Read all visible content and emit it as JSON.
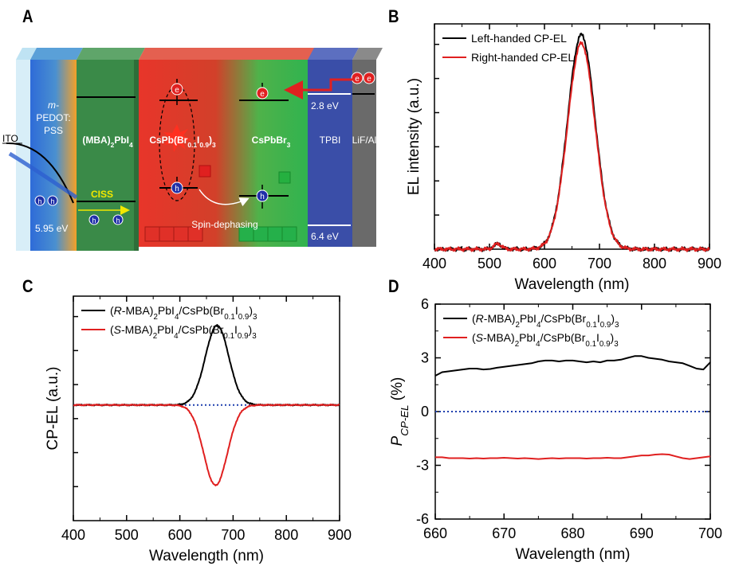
{
  "panels": {
    "a": "A",
    "b": "B",
    "c": "C",
    "d": "D"
  },
  "device": {
    "layers": [
      {
        "lines": [
          "m-",
          "PEDOT:",
          "PSS"
        ],
        "color": "#f0a030"
      },
      {
        "lines": [
          "(MBA)2PbI4"
        ],
        "color": "#3f8f4a"
      },
      {
        "lines": [
          "CsPb(Br0.1I0.9)3"
        ],
        "color": "#e03a2c"
      },
      {
        "lines": [
          "CsPbBr3"
        ],
        "color": "#37b34a"
      },
      {
        "lines": [
          "TPBI"
        ],
        "color": "#3d4fa8"
      },
      {
        "lines": [
          "LiF/Al"
        ],
        "color": "#6b6b6b"
      }
    ],
    "electrode": "ITO",
    "labels": {
      "ciss": "CISS",
      "spin_dephasing": "Spin-dephasing",
      "e_level": "2.8 eV",
      "h_level": "5.95 eV",
      "tpbi_level": "6.4 eV",
      "electron": "e",
      "hole": "h"
    }
  },
  "chart_data": [
    {
      "panel": "B",
      "type": "line",
      "xlabel": "Wavelength (nm)",
      "ylabel": "EL intensity (a.u.)",
      "xlim": [
        400,
        900
      ],
      "xticks": [
        400,
        500,
        600,
        700,
        800,
        900
      ],
      "ylim": [
        0,
        1.05
      ],
      "yticks_labeled": false,
      "legend_position": "top-left",
      "series": [
        {
          "name": "Left-handed CP-EL",
          "color": "#000000",
          "peak_x": 667,
          "peak_y": 1.0,
          "width_nm": 25,
          "shoulder_x": 515,
          "shoulder_y": 0.025
        },
        {
          "name": "Right-handed CP-EL",
          "color": "#e02020",
          "peak_x": 667,
          "peak_y": 0.96,
          "width_nm": 25,
          "shoulder_x": 515,
          "shoulder_y": 0.025
        }
      ]
    },
    {
      "panel": "C",
      "type": "line",
      "xlabel": "Wavelength (nm)",
      "ylabel": "CP-EL (a.u.)",
      "xlim": [
        400,
        900
      ],
      "xticks": [
        400,
        500,
        600,
        700,
        800,
        900
      ],
      "ylim": [
        -1.7,
        1.6
      ],
      "yticks_labeled": false,
      "legend_position": "top-left",
      "zero_line": {
        "y": 0,
        "style": "dotted",
        "color": "#1f3fae"
      },
      "series": [
        {
          "name": "(R-MBA)2PbI4/CsPb(Br0.1I0.9)3",
          "color": "#000000",
          "peak_x": 670,
          "peak_y": 1.17,
          "width_nm": 22
        },
        {
          "name": "(S-MBA)2PbI4/CsPb(Br0.1I0.9)3",
          "color": "#e02020",
          "peak_x": 667,
          "peak_y": -1.18,
          "width_nm": 22
        }
      ]
    },
    {
      "panel": "D",
      "type": "line",
      "xlabel": "Wavelength (nm)",
      "ylabel": "P CP-EL (%)",
      "xlim": [
        660,
        700
      ],
      "xticks": [
        660,
        670,
        680,
        690,
        700
      ],
      "ylim": [
        -6,
        6
      ],
      "yticks": [
        -6,
        -3,
        0,
        3,
        6
      ],
      "legend_position": "top-left",
      "zero_line": {
        "y": 0,
        "style": "dotted",
        "color": "#1f3fae"
      },
      "series": [
        {
          "name": "(R-MBA)2PbI4/CsPb(Br0.1I0.9)3",
          "color": "#000000",
          "x": [
            660,
            661,
            662,
            663,
            664,
            665,
            666,
            667,
            668,
            669,
            670,
            671,
            672,
            673,
            674,
            675,
            676,
            677,
            678,
            679,
            680,
            681,
            682,
            683,
            684,
            685,
            686,
            687,
            688,
            689,
            690,
            691,
            692,
            693,
            694,
            695,
            696,
            697,
            698,
            699,
            700
          ],
          "y": [
            2.0,
            2.2,
            2.25,
            2.3,
            2.35,
            2.4,
            2.4,
            2.35,
            2.38,
            2.45,
            2.5,
            2.55,
            2.6,
            2.65,
            2.7,
            2.8,
            2.85,
            2.85,
            2.8,
            2.85,
            2.85,
            2.8,
            2.75,
            2.8,
            2.75,
            2.85,
            2.85,
            2.9,
            3.0,
            3.1,
            3.1,
            3.0,
            2.95,
            2.9,
            2.8,
            2.75,
            2.7,
            2.55,
            2.4,
            2.35,
            2.75
          ]
        },
        {
          "name": "(S-MBA)2PbI4/CsPb(Br0.1I0.9)3",
          "color": "#e02020",
          "x": [
            660,
            661,
            662,
            663,
            664,
            665,
            666,
            667,
            668,
            669,
            670,
            671,
            672,
            673,
            674,
            675,
            676,
            677,
            678,
            679,
            680,
            681,
            682,
            683,
            684,
            685,
            686,
            687,
            688,
            689,
            690,
            691,
            692,
            693,
            694,
            695,
            696,
            697,
            698,
            699,
            700
          ],
          "y": [
            -2.55,
            -2.55,
            -2.6,
            -2.6,
            -2.6,
            -2.62,
            -2.6,
            -2.62,
            -2.6,
            -2.6,
            -2.58,
            -2.6,
            -2.62,
            -2.6,
            -2.62,
            -2.65,
            -2.62,
            -2.6,
            -2.62,
            -2.6,
            -2.6,
            -2.6,
            -2.62,
            -2.6,
            -2.6,
            -2.58,
            -2.6,
            -2.6,
            -2.55,
            -2.5,
            -2.45,
            -2.45,
            -2.4,
            -2.38,
            -2.4,
            -2.5,
            -2.6,
            -2.65,
            -2.6,
            -2.55,
            -2.5
          ]
        }
      ]
    }
  ]
}
